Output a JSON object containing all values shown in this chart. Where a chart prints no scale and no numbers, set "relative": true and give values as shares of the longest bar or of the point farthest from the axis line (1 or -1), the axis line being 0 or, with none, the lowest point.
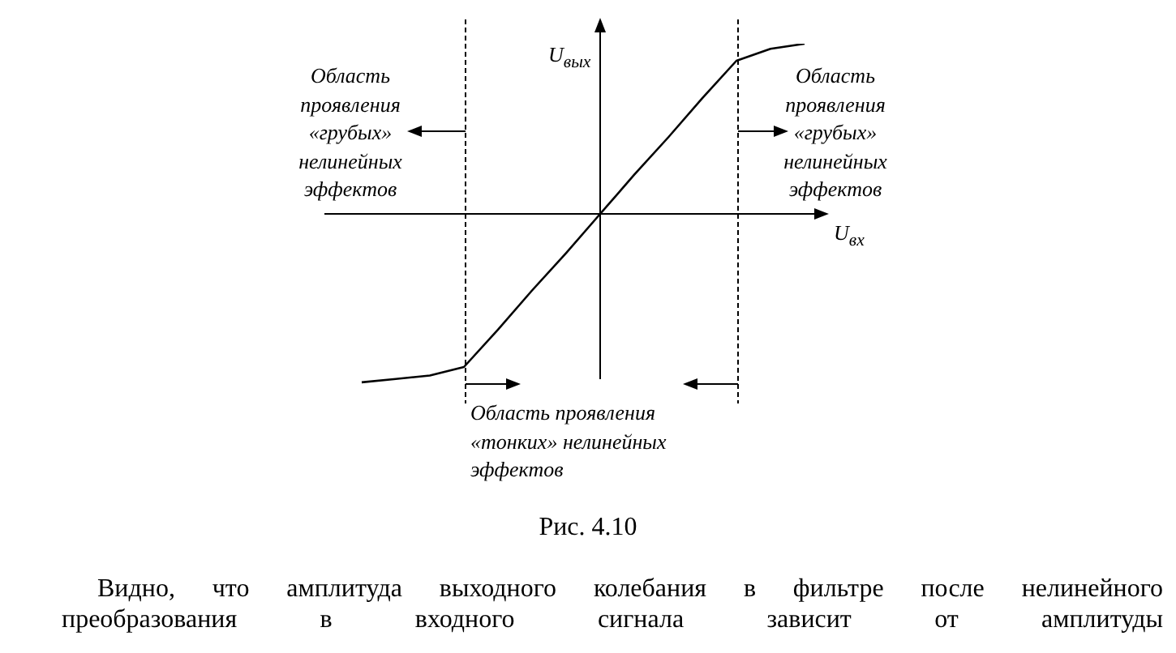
{
  "chart_data": {
    "type": "line",
    "relative": true,
    "categories": [
      null,
      null,
      null,
      null,
      null,
      null,
      null,
      null,
      null,
      null,
      null,
      null,
      null,
      null
    ],
    "series": [
      {
        "color": "#000000",
        "values": [
          -0.99,
          -0.97,
          -0.95,
          -0.9,
          -0.68,
          -0.45,
          -0.23,
          0,
          0.23,
          0.45,
          0.68,
          0.9,
          0.97,
          1.0
        ]
      }
    ],
    "xlabel": "U$_{вх}$",
    "ylabel": "U$_{вых}$",
    "annotations": [
      "Область проявления «грубых» нелинейных эффектов",
      "Область проявления «грубых» нелинейных эффектов",
      "Область проявления «тонких» нелинейных эффектов",
      "Рис. 4.10",
      "Видно, что амплитуда выходного колебания в фильтре после нелинейного преобразования в входного сигнала зависит от амплитуды"
    ],
    "grid": false,
    "legend": false,
    "marker": "none",
    "line_style": "solid"
  }
}
